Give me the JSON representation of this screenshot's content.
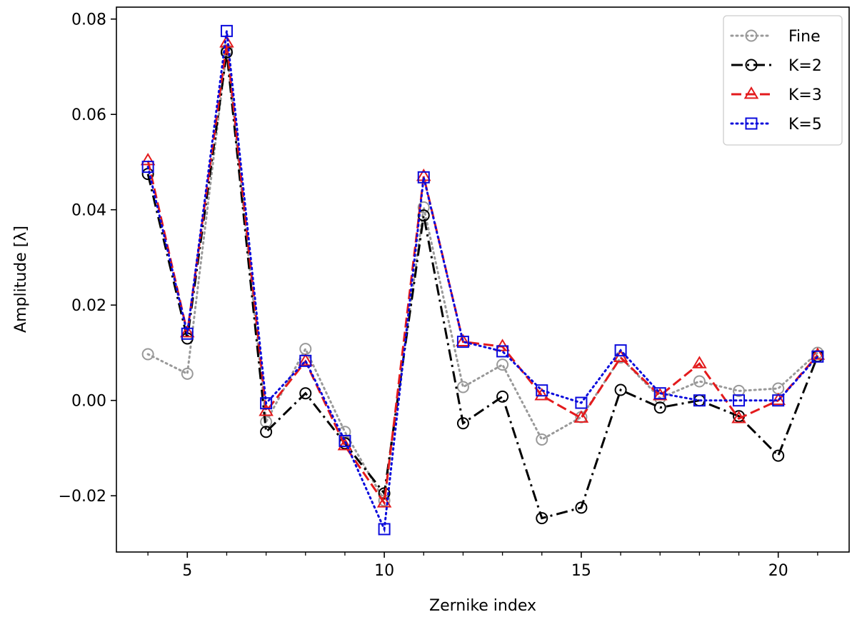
{
  "chart_data": {
    "type": "line",
    "xlabel": "Zernike index",
    "ylabel": "Amplitude [λ]",
    "xlim": [
      3.2,
      21.8
    ],
    "ylim": [
      -0.0318,
      0.0825
    ],
    "xticks": [
      5,
      10,
      15,
      20
    ],
    "xtick_labels": [
      "5",
      "10",
      "15",
      "20"
    ],
    "minor_xticks": [
      4,
      6,
      7,
      8,
      9,
      11,
      12,
      13,
      14,
      16,
      17,
      18,
      19,
      21
    ],
    "yticks": [
      -0.02,
      0.0,
      0.02,
      0.04,
      0.06,
      0.08
    ],
    "ytick_labels": [
      "−0.02",
      "0.00",
      "0.02",
      "0.04",
      "0.06",
      "0.08"
    ],
    "grid": false,
    "legend_position": "top-right",
    "x": [
      4,
      5,
      6,
      7,
      8,
      9,
      10,
      11,
      12,
      13,
      14,
      15,
      16,
      17,
      18,
      19,
      20,
      21
    ],
    "series": [
      {
        "name": "Fine",
        "color": "#999999",
        "dash": "dotted",
        "marker": "circle",
        "values": [
          0.0097,
          0.0056,
          0.0735,
          -0.0045,
          0.0108,
          -0.0066,
          -0.021,
          0.0405,
          0.0028,
          0.0075,
          -0.0082,
          -0.0035,
          0.009,
          0.0005,
          0.004,
          0.002,
          0.0025,
          0.01
        ]
      },
      {
        "name": "K=2",
        "color": "#000000",
        "dash": "dashdot",
        "marker": "circle",
        "values": [
          0.0475,
          0.013,
          0.073,
          -0.0066,
          0.0015,
          -0.009,
          -0.0195,
          0.0388,
          -0.0048,
          0.0008,
          -0.0247,
          -0.0225,
          0.0022,
          -0.0015,
          0.0,
          -0.0033,
          -0.0116,
          0.0093
        ]
      },
      {
        "name": "K=3",
        "color": "#e31a1c",
        "dash": "dashed",
        "marker": "triangle",
        "values": [
          0.0503,
          0.0142,
          0.075,
          -0.0023,
          0.0082,
          -0.0095,
          -0.0215,
          0.047,
          0.0123,
          0.0113,
          0.001,
          -0.0037,
          0.009,
          0.001,
          0.0077,
          -0.0038,
          0.0,
          0.0095
        ]
      },
      {
        "name": "K=5",
        "color": "#0a0adc",
        "dash": "dotted",
        "marker": "square",
        "values": [
          0.049,
          0.014,
          0.0775,
          -0.0006,
          0.0083,
          -0.0085,
          -0.027,
          0.0468,
          0.0123,
          0.0103,
          0.0021,
          -0.0005,
          0.0105,
          0.0015,
          0.0,
          0.0,
          0.0,
          0.0092
        ]
      }
    ]
  }
}
